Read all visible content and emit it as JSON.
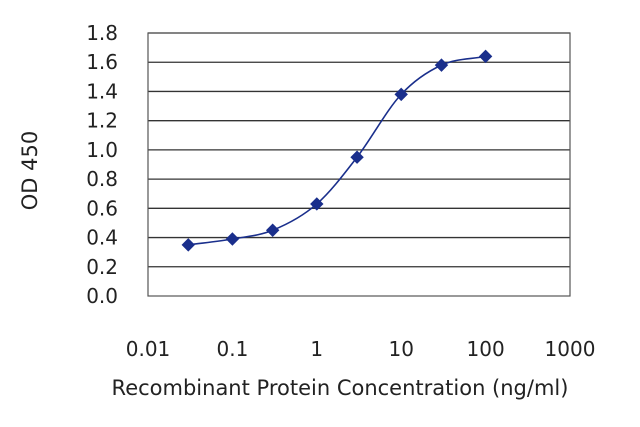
{
  "chart_data": {
    "type": "scatter",
    "title": "",
    "xlabel": "Recombinant Protein Concentration (ng/ml)",
    "ylabel": "OD 450",
    "x_scale": "log",
    "xlim": [
      0.01,
      1000
    ],
    "ylim": [
      0.0,
      1.8
    ],
    "x_ticks": [
      0.01,
      0.1,
      1,
      10,
      100,
      1000
    ],
    "x_tick_labels": [
      "0.01",
      "0.1",
      "1",
      "10",
      "100",
      "1000"
    ],
    "y_ticks": [
      0.0,
      0.2,
      0.4,
      0.6,
      0.8,
      1.0,
      1.2,
      1.4,
      1.6,
      1.8
    ],
    "y_tick_labels": [
      "0.0",
      "0.2",
      "0.4",
      "0.6",
      "0.8",
      "1.0",
      "1.2",
      "1.4",
      "1.6",
      "1.8"
    ],
    "grid": "horizontal",
    "fitted_curve": true,
    "marker": "diamond",
    "colors": {
      "series": "#1a2f8c",
      "grid": "#333333",
      "frame": "#555555",
      "plot_bg": "#ffffff"
    },
    "series": [
      {
        "x": [
          0.03,
          0.1,
          0.3,
          1,
          3,
          10,
          30,
          100
        ],
        "y": [
          0.35,
          0.39,
          0.45,
          0.63,
          0.95,
          1.38,
          1.58,
          1.64
        ]
      }
    ]
  }
}
